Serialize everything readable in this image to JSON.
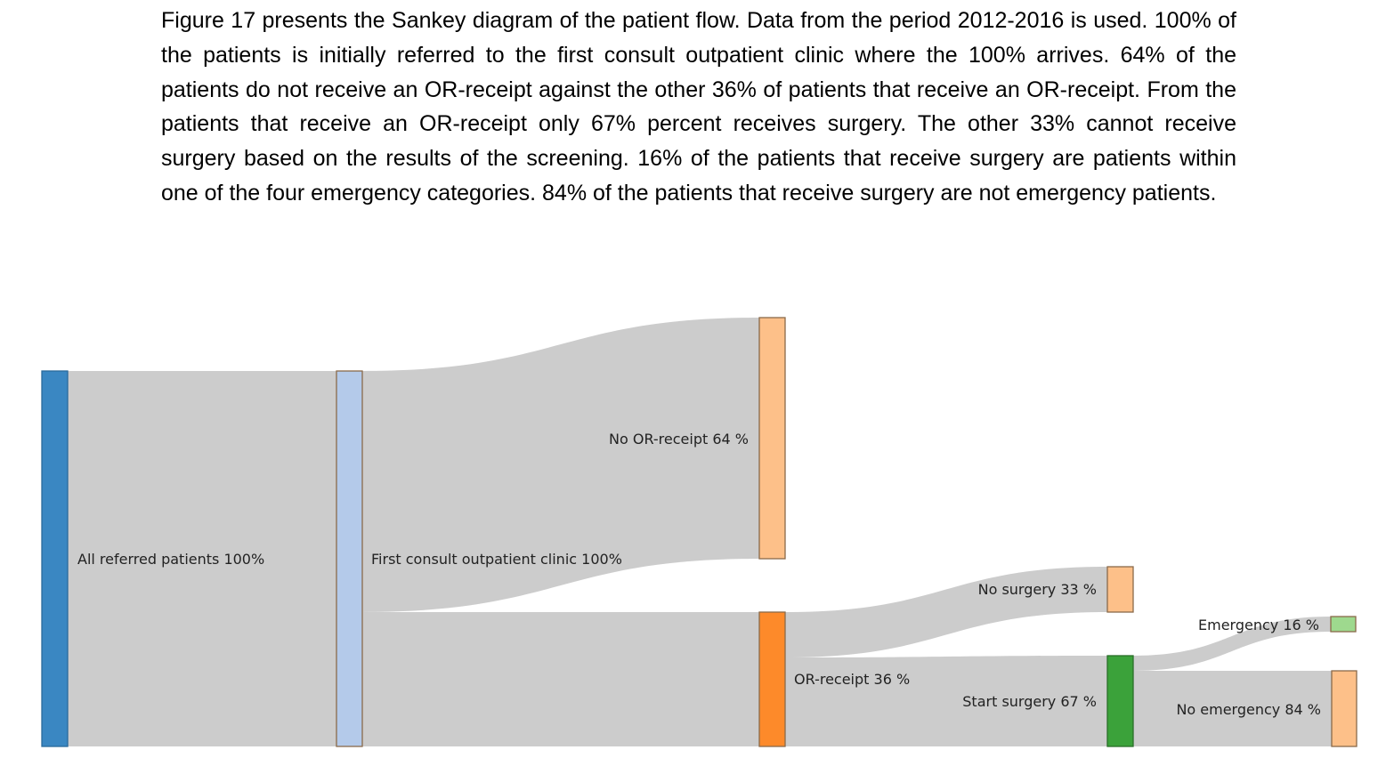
{
  "paragraph": "Figure 17 presents the Sankey diagram of the patient flow. Data from the period 2012-2016 is used. 100% of the patients is initially referred to the first consult outpatient clinic where the 100% arrives. 64% of the patients do not receive an OR-receipt against the other 36% of patients that receive an OR-receipt. From the patients that receive an OR-receipt only 67% percent receives surgery. The other 33% cannot receive surgery based on the results of the screening. 16% of the patients that receive surgery are patients within one of the four emergency categories. 84% of the patients that receive surgery are not emergency patients.",
  "sankey": {
    "nodes": [
      {
        "id": "all",
        "label": "All referred patients 100%",
        "color": "#3a87c2"
      },
      {
        "id": "first",
        "label": "First consult outpatient clinic 100%",
        "color": "#b4caea"
      },
      {
        "id": "noor",
        "label": "No OR-receipt 64 %",
        "color": "#fdc089"
      },
      {
        "id": "or",
        "label": "OR-receipt 36 %",
        "color": "#fd8a2a"
      },
      {
        "id": "nosurg",
        "label": "No surgery 33 %",
        "color": "#fdc089"
      },
      {
        "id": "surg",
        "label": "Start surgery 67 %",
        "color": "#3ba23a"
      },
      {
        "id": "emerg",
        "label": "Emergency 16 %",
        "color": "#9ed98e"
      },
      {
        "id": "noemerg",
        "label": "No emergency 84 %",
        "color": "#fdc089"
      }
    ],
    "link_color": "#cccccc"
  }
}
